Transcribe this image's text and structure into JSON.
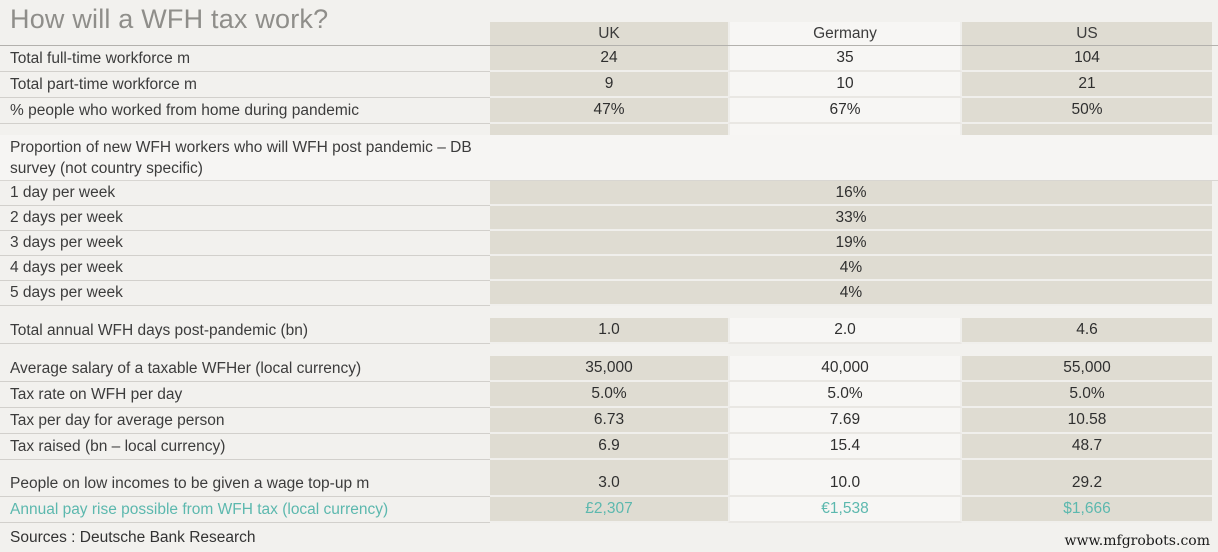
{
  "title": "How will a WFH tax work?",
  "columns": [
    "UK",
    "Germany",
    "US"
  ],
  "rows": [
    {
      "kind": "data",
      "label": "Total full-time workforce m",
      "values": [
        "24",
        "35",
        "104"
      ]
    },
    {
      "kind": "data",
      "label": "Total part-time workforce m",
      "values": [
        "9",
        "10",
        "21"
      ]
    },
    {
      "kind": "data",
      "label": "% people who worked from home during pandemic",
      "values": [
        "47%",
        "67%",
        "50%"
      ]
    },
    {
      "kind": "spacer-beige"
    },
    {
      "kind": "section",
      "label": "Proportion of new WFH workers who will WFH post pandemic – DB survey (not country specific)"
    },
    {
      "kind": "span",
      "label": "1 day per week",
      "value": "16%"
    },
    {
      "kind": "span",
      "label": "2 days per week",
      "value": "33%"
    },
    {
      "kind": "span",
      "label": "3 days per week",
      "value": "19%"
    },
    {
      "kind": "span",
      "label": "4 days per week",
      "value": "4%"
    },
    {
      "kind": "span",
      "label": "5 days per week",
      "value": "4%"
    },
    {
      "kind": "spacer-bg"
    },
    {
      "kind": "data",
      "label": "Total annual WFH days post-pandemic (bn)",
      "values": [
        "1.0",
        "2.0",
        "4.6"
      ]
    },
    {
      "kind": "spacer-bg"
    },
    {
      "kind": "data",
      "label": "Average salary of a taxable WFHer (local currency)",
      "values": [
        "35,000",
        "40,000",
        "55,000"
      ]
    },
    {
      "kind": "data",
      "label": "Tax rate on WFH per day",
      "values": [
        "5.0%",
        "5.0%",
        "5.0%"
      ]
    },
    {
      "kind": "data",
      "label": "Tax per day for average person",
      "values": [
        "6.73",
        "7.69",
        "10.58"
      ]
    },
    {
      "kind": "data",
      "label": "Tax raised (bn – local currency)",
      "values": [
        "6.9",
        "15.4",
        "48.7"
      ]
    },
    {
      "kind": "spacer-beige"
    },
    {
      "kind": "data",
      "label": "People on low incomes to be given a wage top-up m",
      "values": [
        "3.0",
        "10.0",
        "29.2"
      ]
    },
    {
      "kind": "data",
      "label": "Annual pay rise possible from WFH tax (local currency)",
      "values": [
        "£2,307",
        "€1,538",
        "$1,666"
      ],
      "accent": true
    }
  ],
  "source_note": "Sources : Deutsche Bank Research",
  "watermark": "www.mfgrobots.com",
  "colors": {
    "beige_column": "#dfdcd2",
    "white_column": "#f7f6f4",
    "page_background": "#f2f1ee",
    "accent_teal": "#5cb8ae",
    "title_gray": "#8f8e8a"
  },
  "chart_data": {
    "type": "table",
    "title": "How will a WFH tax work?",
    "columns": [
      "",
      "UK",
      "Germany",
      "US"
    ],
    "rows": [
      [
        "Total full-time workforce m",
        "24",
        "35",
        "104"
      ],
      [
        "Total part-time workforce m",
        "9",
        "10",
        "21"
      ],
      [
        "% people who worked from home during pandemic",
        "47%",
        "67%",
        "50%"
      ],
      [
        "Proportion of new WFH workers who will WFH post pandemic – DB survey (not country specific)",
        "",
        "",
        ""
      ],
      [
        "1 day per week",
        "",
        "16%",
        ""
      ],
      [
        "2 days per week",
        "",
        "33%",
        ""
      ],
      [
        "3 days per week",
        "",
        "19%",
        ""
      ],
      [
        "4 days per week",
        "",
        "4%",
        ""
      ],
      [
        "5 days per week",
        "",
        "4%",
        ""
      ],
      [
        "Total annual WFH days post-pandemic (bn)",
        "1.0",
        "2.0",
        "4.6"
      ],
      [
        "Average salary of a taxable WFHer (local currency)",
        "35,000",
        "40,000",
        "55,000"
      ],
      [
        "Tax rate on WFH per day",
        "5.0%",
        "5.0%",
        "5.0%"
      ],
      [
        "Tax per day for average person",
        "6.73",
        "7.69",
        "10.58"
      ],
      [
        "Tax raised (bn – local currency)",
        "6.9",
        "15.4",
        "48.7"
      ],
      [
        "People on low incomes to be given a wage top-up m",
        "3.0",
        "10.0",
        "29.2"
      ],
      [
        "Annual pay rise possible from WFH tax (local currency)",
        "£2,307",
        "€1,538",
        "$1,666"
      ]
    ],
    "source": "Sources : Deutsche Bank Research"
  }
}
